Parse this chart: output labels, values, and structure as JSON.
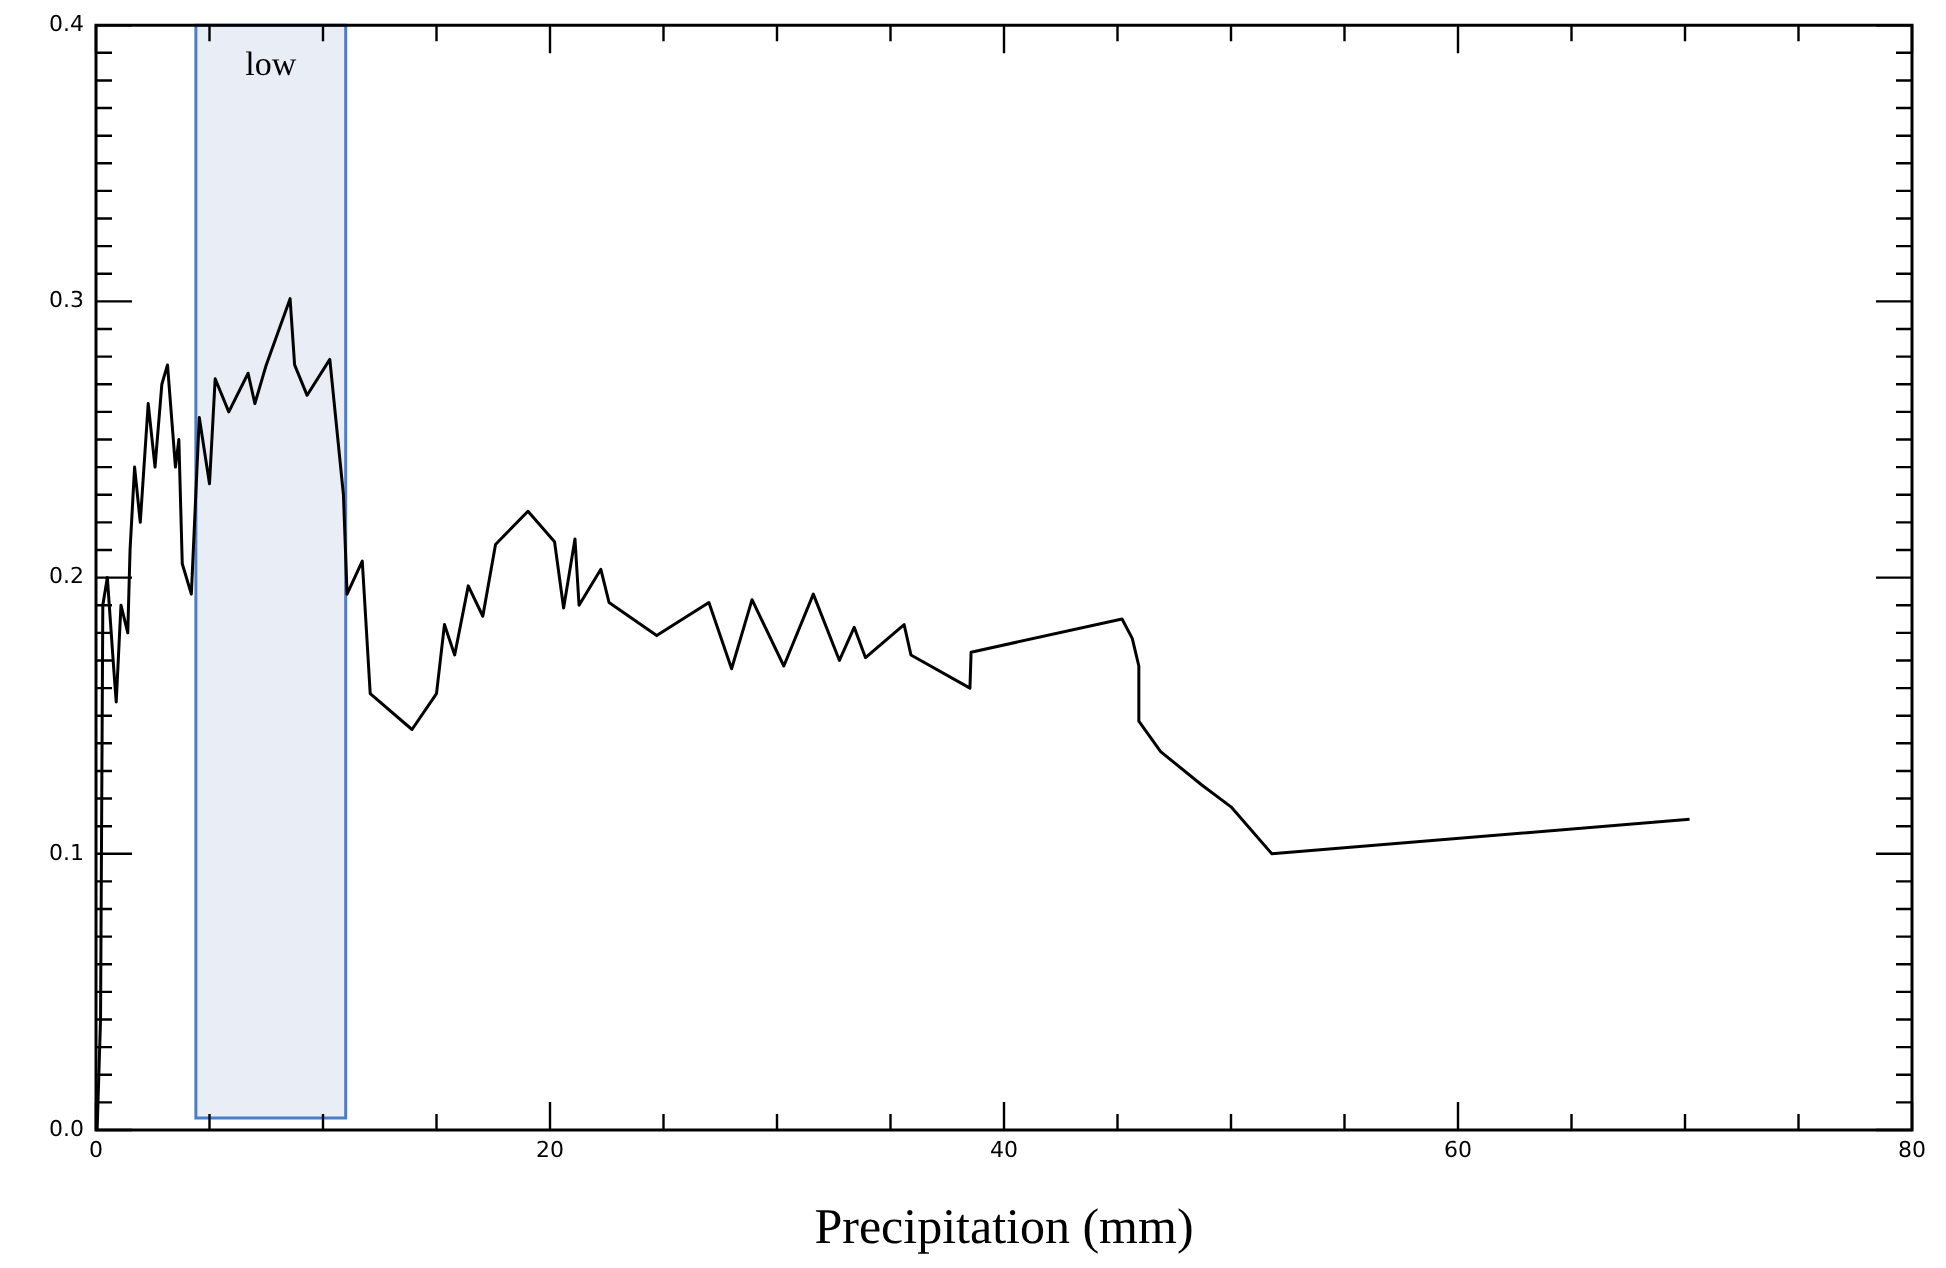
{
  "chart_data": {
    "type": "line",
    "xlabel": "Precipitation (mm)",
    "series": [
      {
        "color": "#000000",
        "x": [
          0.05,
          0.2,
          0.3,
          0.5,
          0.79,
          0.89,
          1.1,
          1.4,
          1.5,
          1.7,
          1.95,
          2.3,
          2.6,
          2.9,
          3.15,
          3.5,
          3.65,
          3.8,
          4.2,
          4.55,
          5.0,
          5.25,
          5.85,
          6.7,
          7.0,
          7.5,
          8.55,
          8.75,
          9.3,
          10.3,
          10.9,
          11.06,
          11.73,
          12.08,
          13.92,
          15.0,
          15.35,
          15.8,
          16.4,
          17.04,
          17.6,
          19.03,
          20.2,
          20.6,
          21.1,
          21.28,
          22.24,
          22.6,
          24.7,
          27.0,
          28.0,
          28.9,
          30.3,
          31.6,
          32.75,
          33.4,
          33.9,
          35.6,
          35.9,
          38.5,
          38.55,
          45.2,
          45.65,
          45.94,
          45.94,
          46.9,
          48.7,
          50.0,
          51.8,
          70.2
        ],
        "values": [
          0.0,
          0.04,
          0.19,
          0.2,
          0.166,
          0.155,
          0.19,
          0.18,
          0.21,
          0.24,
          0.22,
          0.263,
          0.24,
          0.27,
          0.277,
          0.24,
          0.25,
          0.205,
          0.194,
          0.258,
          0.234,
          0.272,
          0.26,
          0.274,
          0.263,
          0.277,
          0.301,
          0.277,
          0.266,
          0.279,
          0.23,
          0.194,
          0.206,
          0.158,
          0.145,
          0.158,
          0.183,
          0.172,
          0.197,
          0.186,
          0.212,
          0.224,
          0.213,
          0.189,
          0.214,
          0.19,
          0.203,
          0.191,
          0.179,
          0.191,
          0.167,
          0.192,
          0.168,
          0.194,
          0.17,
          0.182,
          0.171,
          0.183,
          0.172,
          0.16,
          0.173,
          0.185,
          0.178,
          0.168,
          0.148,
          0.137,
          0.125,
          0.117,
          0.1,
          0.1125
        ]
      }
    ],
    "xlim": [
      0,
      80
    ],
    "xticks": [
      0,
      {
        "value": 5,
        "label": null
      },
      {
        "value": 10,
        "label": null
      },
      {
        "value": 15,
        "label": null
      },
      20,
      {
        "value": 25,
        "label": null
      },
      {
        "value": 30,
        "label": null
      },
      {
        "value": 35,
        "label": null
      },
      40,
      {
        "value": 45,
        "label": null
      },
      {
        "value": 50,
        "label": null
      },
      {
        "value": 55,
        "label": null
      },
      60,
      {
        "value": 65,
        "label": null
      },
      {
        "value": 70,
        "label": null
      },
      {
        "value": 75,
        "label": null
      },
      80
    ],
    "ylim": [
      0,
      0.4
    ],
    "yticks": [
      {
        "value": 0,
        "label": "0.0"
      },
      {
        "value": 0.1,
        "label": "0.1"
      },
      {
        "value": 0.2,
        "label": "0.2"
      },
      {
        "value": 0.3,
        "label": "0.3"
      },
      {
        "value": 0.4,
        "label": "0.4"
      }
    ],
    "bands": [
      {
        "axis": "x",
        "from": 4.4,
        "to": 11,
        "label": "low",
        "color": "#e9eef6"
      }
    ],
    "marker": "none",
    "line_style": "solid",
    "legend": false
  }
}
